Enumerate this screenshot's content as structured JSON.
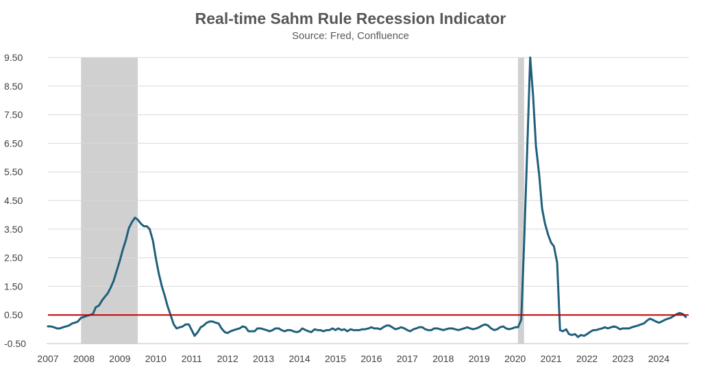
{
  "chart_data": {
    "type": "line",
    "title": "Real-time Sahm Rule Recession Indicator",
    "subtitle": "Source: Fred, Confluence",
    "xlabel": "",
    "ylabel": "",
    "ylim": [
      -0.5,
      9.5
    ],
    "xlim": [
      2007.0,
      2024.83
    ],
    "y_ticks": [
      "9.50",
      "8.50",
      "7.50",
      "6.50",
      "5.50",
      "4.50",
      "3.50",
      "2.50",
      "1.50",
      "0.50",
      "-0.50"
    ],
    "x_ticks": [
      "2007",
      "2008",
      "2009",
      "2010",
      "2011",
      "2012",
      "2013",
      "2014",
      "2015",
      "2016",
      "2017",
      "2018",
      "2019",
      "2020",
      "2021",
      "2022",
      "2023",
      "2024"
    ],
    "grid": true,
    "legend": "none",
    "recessions": [
      {
        "start": 2007.92,
        "end": 2009.5
      },
      {
        "start": 2020.08,
        "end": 2020.25
      }
    ],
    "threshold": {
      "value": 0.5,
      "color": "#c00000"
    },
    "series_color": "#1f5f7a",
    "recession_color": "#d0d0d0",
    "series": [
      {
        "x": [
          2007.0,
          2007.08,
          2007.17,
          2007.25,
          2007.33,
          2007.42,
          2007.5,
          2007.58,
          2007.67,
          2007.75,
          2007.83,
          2007.92,
          2008.0,
          2008.08,
          2008.17,
          2008.25,
          2008.33,
          2008.42,
          2008.5,
          2008.58,
          2008.67,
          2008.75,
          2008.83,
          2008.92,
          2009.0,
          2009.08,
          2009.17,
          2009.25,
          2009.33,
          2009.42,
          2009.5,
          2009.58,
          2009.67,
          2009.75,
          2009.83,
          2009.92,
          2010.0,
          2010.08,
          2010.17,
          2010.25,
          2010.33,
          2010.42,
          2010.5,
          2010.58,
          2010.67,
          2010.75,
          2010.83,
          2010.92,
          2011.0,
          2011.08,
          2011.17,
          2011.25,
          2011.33,
          2011.42,
          2011.5,
          2011.58,
          2011.67,
          2011.75,
          2011.83,
          2011.92,
          2012.0,
          2012.08,
          2012.17,
          2012.25,
          2012.33,
          2012.42,
          2012.5,
          2012.58,
          2012.67,
          2012.75,
          2012.83,
          2012.92,
          2013.0,
          2013.08,
          2013.17,
          2013.25,
          2013.33,
          2013.42,
          2013.5,
          2013.58,
          2013.67,
          2013.75,
          2013.83,
          2013.92,
          2014.0,
          2014.08,
          2014.17,
          2014.25,
          2014.33,
          2014.42,
          2014.5,
          2014.58,
          2014.67,
          2014.75,
          2014.83,
          2014.92,
          2015.0,
          2015.08,
          2015.17,
          2015.25,
          2015.33,
          2015.42,
          2015.5,
          2015.58,
          2015.67,
          2015.75,
          2015.83,
          2015.92,
          2016.0,
          2016.08,
          2016.17,
          2016.25,
          2016.33,
          2016.42,
          2016.5,
          2016.58,
          2016.67,
          2016.75,
          2016.83,
          2016.92,
          2017.0,
          2017.08,
          2017.17,
          2017.25,
          2017.33,
          2017.42,
          2017.5,
          2017.58,
          2017.67,
          2017.75,
          2017.83,
          2017.92,
          2018.0,
          2018.08,
          2018.17,
          2018.25,
          2018.33,
          2018.42,
          2018.5,
          2018.58,
          2018.67,
          2018.75,
          2018.83,
          2018.92,
          2019.0,
          2019.08,
          2019.17,
          2019.25,
          2019.33,
          2019.42,
          2019.5,
          2019.58,
          2019.67,
          2019.75,
          2019.83,
          2019.92,
          2020.0,
          2020.08,
          2020.17,
          2020.25,
          2020.33,
          2020.42,
          2020.5,
          2020.58,
          2020.67,
          2020.75,
          2020.83,
          2020.92,
          2021.0,
          2021.08,
          2021.17,
          2021.25,
          2021.33,
          2021.42,
          2021.5,
          2021.58,
          2021.67,
          2021.75,
          2021.83,
          2021.92,
          2022.0,
          2022.08,
          2022.17,
          2022.25,
          2022.33,
          2022.42,
          2022.5,
          2022.58,
          2022.67,
          2022.75,
          2022.83,
          2022.92,
          2023.0,
          2023.08,
          2023.17,
          2023.25,
          2023.33,
          2023.42,
          2023.5,
          2023.58,
          2023.67,
          2023.75,
          2023.83,
          2023.92,
          2024.0,
          2024.08,
          2024.17,
          2024.25,
          2024.33,
          2024.42,
          2024.5,
          2024.58,
          2024.67,
          2024.75
        ],
        "values": [
          0.1,
          0.1,
          0.07,
          0.03,
          0.03,
          0.07,
          0.1,
          0.13,
          0.2,
          0.23,
          0.27,
          0.4,
          0.43,
          0.47,
          0.5,
          0.53,
          0.77,
          0.83,
          1.0,
          1.13,
          1.27,
          1.47,
          1.7,
          2.07,
          2.4,
          2.77,
          3.13,
          3.53,
          3.73,
          3.9,
          3.83,
          3.7,
          3.6,
          3.6,
          3.5,
          3.1,
          2.5,
          1.97,
          1.5,
          1.17,
          0.8,
          0.47,
          0.17,
          0.03,
          0.07,
          0.1,
          0.17,
          0.17,
          -0.03,
          -0.23,
          -0.1,
          0.07,
          0.13,
          0.23,
          0.27,
          0.27,
          0.23,
          0.2,
          0.03,
          -0.1,
          -0.13,
          -0.07,
          -0.03,
          0.0,
          0.03,
          0.1,
          0.07,
          -0.07,
          -0.07,
          -0.07,
          0.03,
          0.03,
          0.0,
          -0.03,
          -0.07,
          -0.03,
          0.03,
          0.03,
          -0.03,
          -0.07,
          -0.03,
          -0.03,
          -0.07,
          -0.1,
          -0.07,
          0.03,
          -0.03,
          -0.07,
          -0.1,
          0.0,
          -0.03,
          -0.03,
          -0.07,
          -0.03,
          -0.03,
          0.03,
          -0.03,
          0.03,
          -0.03,
          0.0,
          -0.07,
          0.0,
          -0.03,
          -0.03,
          -0.03,
          0.0,
          0.0,
          0.03,
          0.07,
          0.03,
          0.03,
          0.0,
          0.07,
          0.13,
          0.13,
          0.07,
          0.0,
          0.03,
          0.07,
          0.03,
          -0.03,
          -0.07,
          0.0,
          0.03,
          0.07,
          0.07,
          0.0,
          -0.03,
          -0.03,
          0.03,
          0.03,
          0.0,
          -0.03,
          0.0,
          0.03,
          0.03,
          0.0,
          -0.03,
          0.0,
          0.03,
          0.07,
          0.03,
          0.0,
          0.03,
          0.07,
          0.13,
          0.17,
          0.13,
          0.03,
          -0.03,
          0.0,
          0.07,
          0.1,
          0.03,
          0.0,
          0.03,
          0.07,
          0.07,
          0.33,
          3.0,
          6.0,
          9.5,
          8.17,
          6.4,
          5.4,
          4.23,
          3.7,
          3.3,
          3.03,
          2.9,
          2.33,
          -0.03,
          -0.07,
          0.0,
          -0.17,
          -0.2,
          -0.17,
          -0.27,
          -0.2,
          -0.23,
          -0.17,
          -0.1,
          -0.03,
          -0.03,
          0.0,
          0.03,
          0.07,
          0.03,
          0.07,
          0.1,
          0.07,
          0.0,
          0.03,
          0.03,
          0.03,
          0.07,
          0.1,
          0.13,
          0.17,
          0.2,
          0.3,
          0.37,
          0.33,
          0.27,
          0.23,
          0.27,
          0.33,
          0.37,
          0.4,
          0.47,
          0.53,
          0.57,
          0.53,
          0.43
        ]
      }
    ]
  }
}
